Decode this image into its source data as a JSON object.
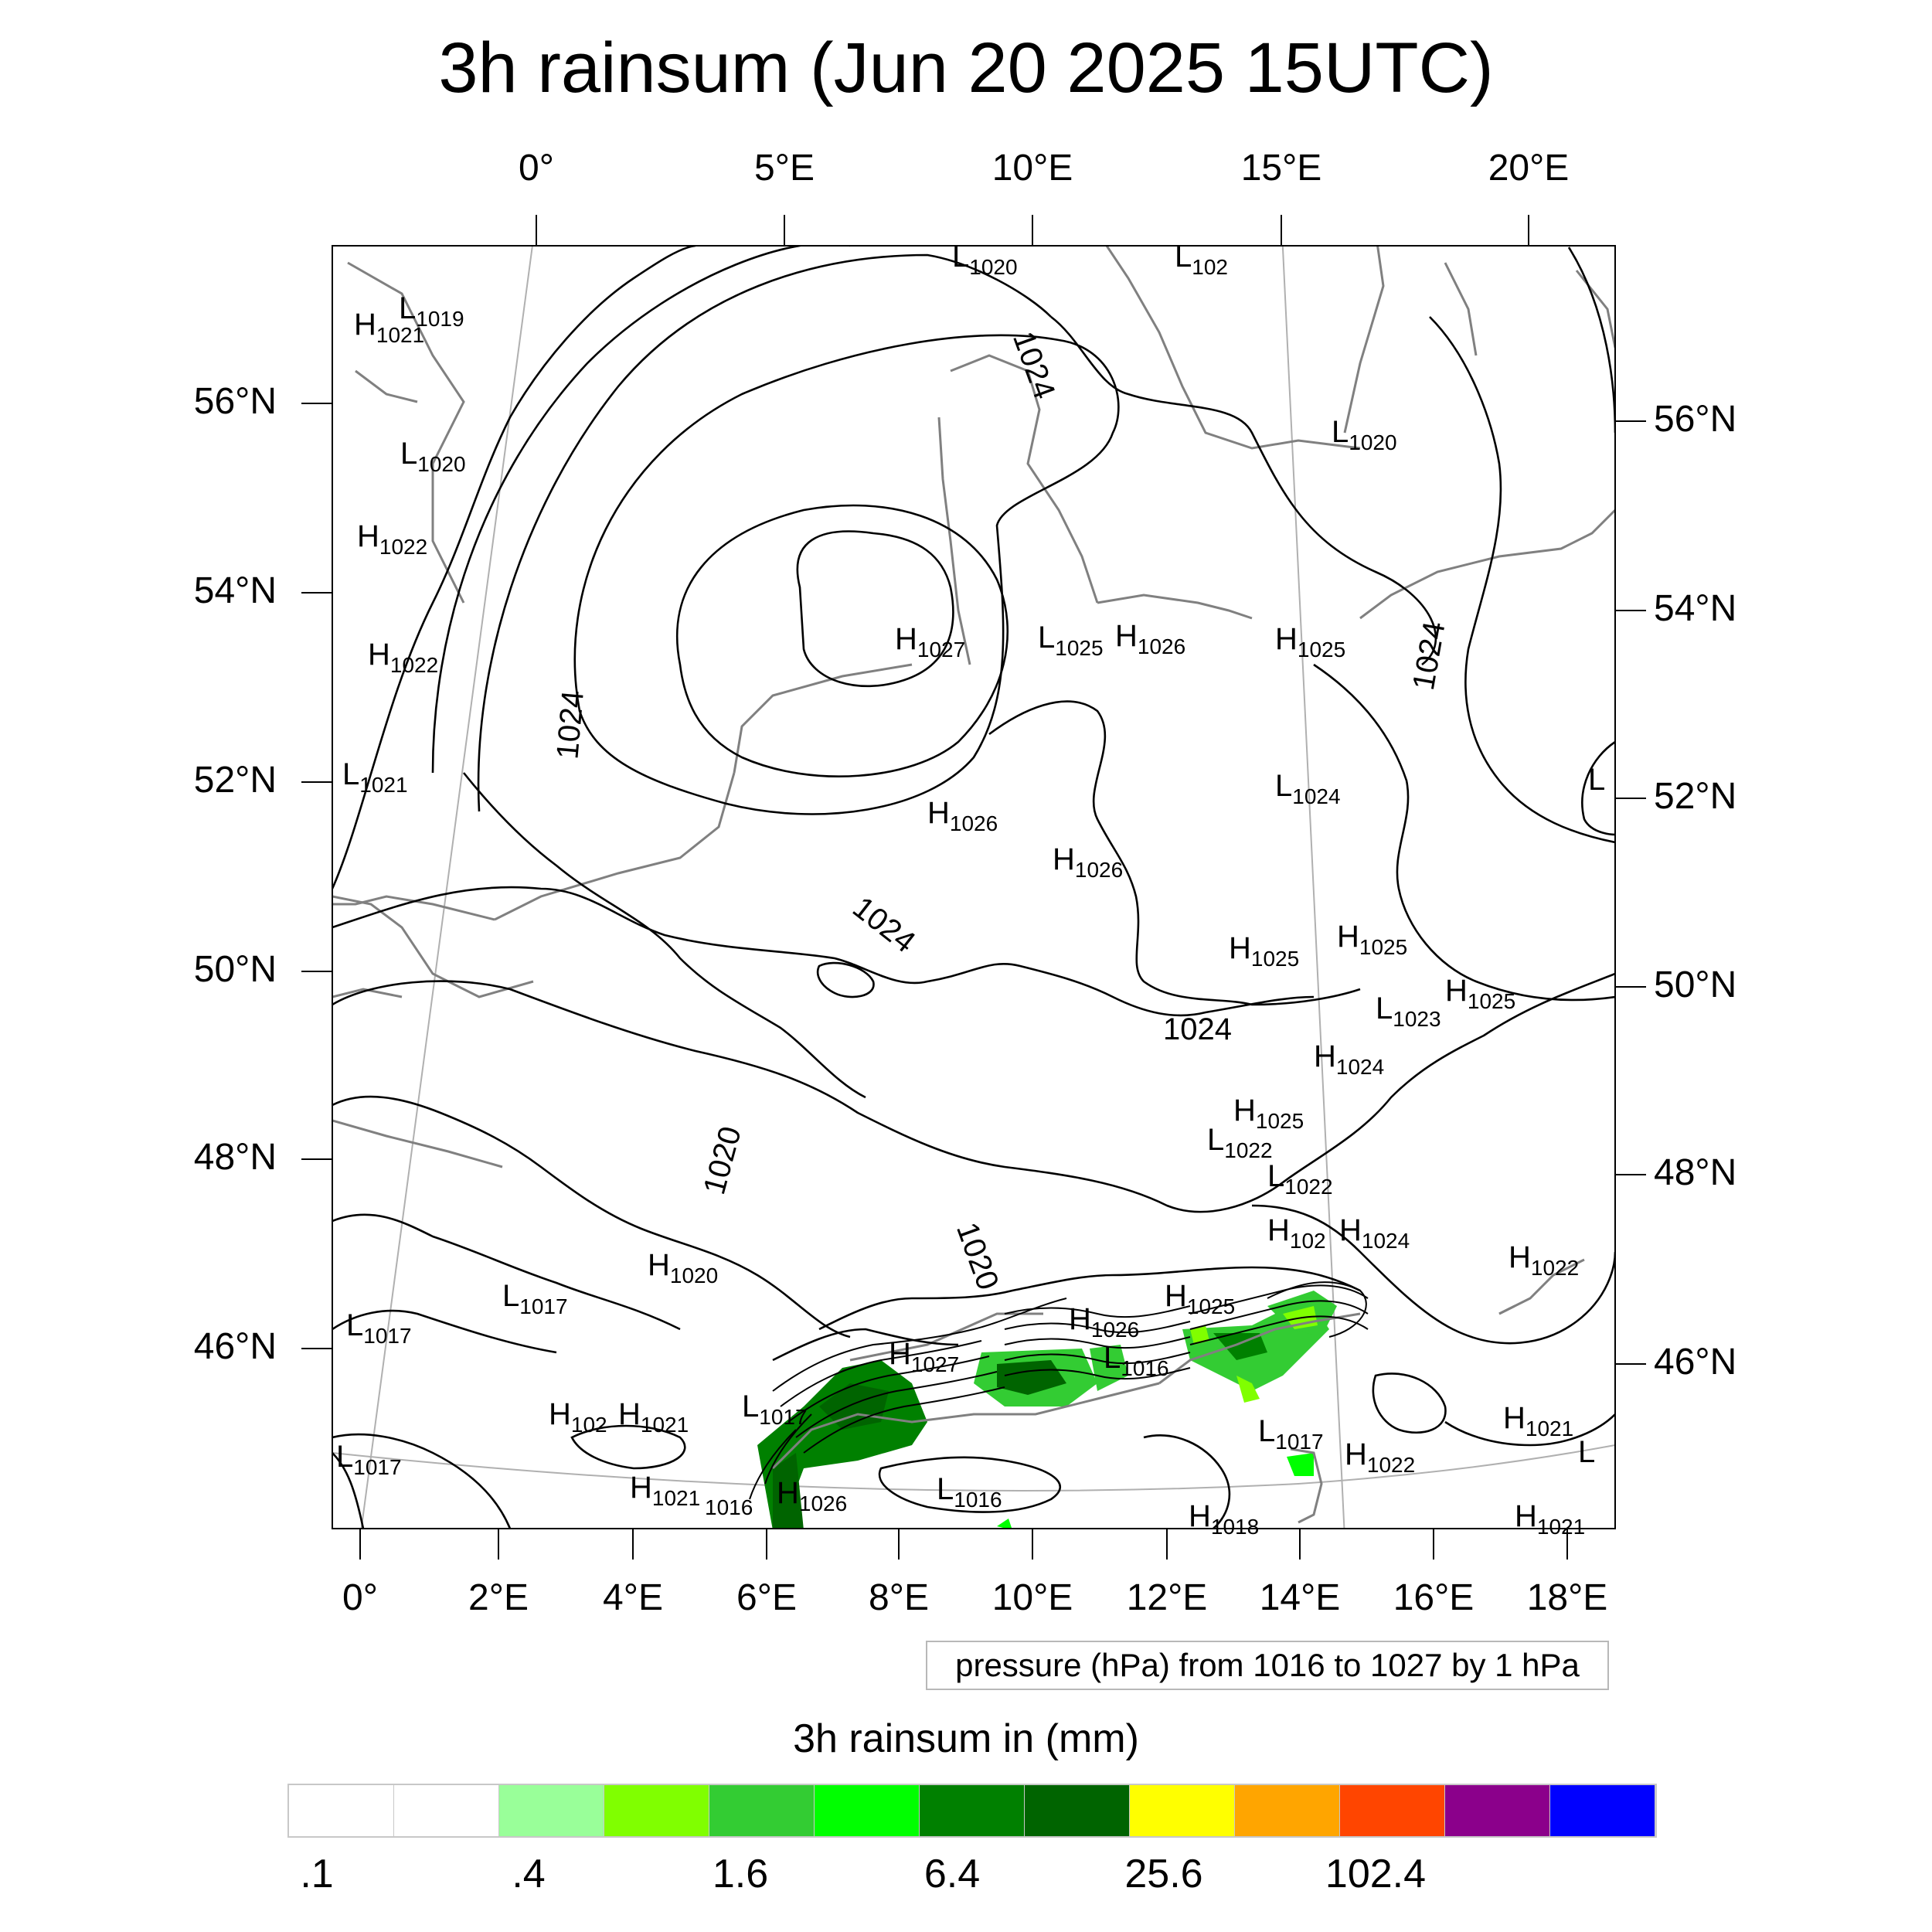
{
  "title": "3h rainsum (Jun 20 2025 15UTC)",
  "top_lon_ticks": [
    "0°",
    "5°E",
    "10°E",
    "15°E",
    "20°E"
  ],
  "bottom_lon_ticks": [
    "0°",
    "2°E",
    "4°E",
    "6°E",
    "8°E",
    "10°E",
    "12°E",
    "14°E",
    "16°E",
    "18°E"
  ],
  "left_lat_ticks": [
    "56°N",
    "54°N",
    "52°N",
    "50°N",
    "48°N",
    "46°N"
  ],
  "right_lat_ticks": [
    "56°N",
    "54°N",
    "52°N",
    "50°N",
    "48°N",
    "46°N"
  ],
  "info_text": "pressure (hPa) from 1016 to 1027 by 1 hPa",
  "legend_title": "3h rainsum in (mm)",
  "colorbar_colors": [
    "#ffffff",
    "#ffffff",
    "#99ff99",
    "#80ff00",
    "#33cc33",
    "#00ff00",
    "#008000",
    "#006400",
    "#ffff00",
    "#ffa500",
    "#ff4500",
    "#8b008b",
    "#0000ff"
  ],
  "colorbar_labels": [
    ".1",
    ".4",
    "1.6",
    "6.4",
    "25.6",
    "102.4"
  ],
  "contour_labels": [
    "1024",
    "1024",
    "1024",
    "1024",
    "1024",
    "1020",
    "1020"
  ],
  "pressure_centers": [
    {
      "t": "L",
      "v": "1020"
    },
    {
      "t": "L",
      "v": "102"
    },
    {
      "t": "L",
      "v": "1019"
    },
    {
      "t": "H",
      "v": "1021"
    },
    {
      "t": "L",
      "v": "1020"
    },
    {
      "t": "H",
      "v": "1022"
    },
    {
      "t": "H",
      "v": "1022"
    },
    {
      "t": "L",
      "v": "1021"
    },
    {
      "t": "L",
      "v": "1020"
    },
    {
      "t": "H",
      "v": "1027"
    },
    {
      "t": "L",
      "v": "1025"
    },
    {
      "t": "H",
      "v": "1026"
    },
    {
      "t": "H",
      "v": "1025"
    },
    {
      "t": "L",
      "v": "1024"
    },
    {
      "t": "H",
      "v": "1026"
    },
    {
      "t": "H",
      "v": "1026"
    },
    {
      "t": "L",
      "v": ""
    },
    {
      "t": "H",
      "v": "1025"
    },
    {
      "t": "H",
      "v": "1025"
    },
    {
      "t": "H",
      "v": "1025"
    },
    {
      "t": "L",
      "v": "1023"
    },
    {
      "t": "H",
      "v": "1024"
    },
    {
      "t": "H",
      "v": "1025"
    },
    {
      "t": "L",
      "v": "1022"
    },
    {
      "t": "L",
      "v": "1022"
    },
    {
      "t": "H",
      "v": "102"
    },
    {
      "t": "H",
      "v": "1024"
    },
    {
      "t": "H",
      "v": "1022"
    },
    {
      "t": "H",
      "v": "1020"
    },
    {
      "t": "L",
      "v": "1017"
    },
    {
      "t": "L",
      "v": "1017"
    },
    {
      "t": "H",
      "v": "1027"
    },
    {
      "t": "H",
      "v": "1026"
    },
    {
      "t": "H",
      "v": "1025"
    },
    {
      "t": "L",
      "v": "1016"
    },
    {
      "t": "H",
      "v": "102"
    },
    {
      "t": "H",
      "v": "1021"
    },
    {
      "t": "L",
      "v": "1017"
    },
    {
      "t": "L",
      "v": "1017"
    },
    {
      "t": "H",
      "v": "1021"
    },
    {
      "t": "",
      "v": "1016"
    },
    {
      "t": "H",
      "v": "1026"
    },
    {
      "t": "L",
      "v": "1016"
    },
    {
      "t": "L",
      "v": "1017"
    },
    {
      "t": "H",
      "v": "1022"
    },
    {
      "t": "H",
      "v": "1021"
    },
    {
      "t": "L",
      "v": ""
    },
    {
      "t": "H",
      "v": "1018"
    },
    {
      "t": "H",
      "v": "1021"
    }
  ]
}
